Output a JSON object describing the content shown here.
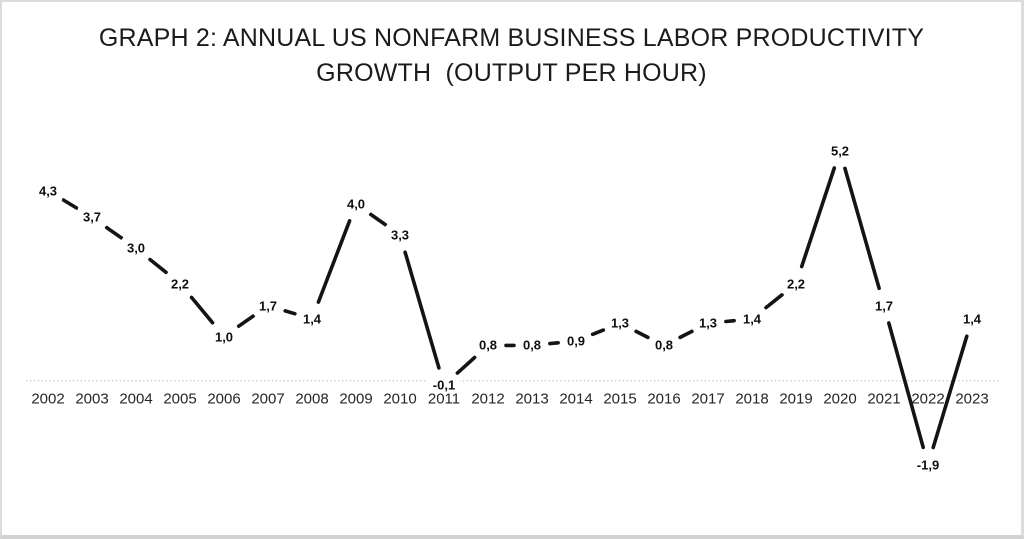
{
  "title": {
    "line1": "GRAPH 2: ANNUAL US NONFARM BUSINESS LABOR PRODUCTIVITY",
    "line2": "GROWTH  (OUTPUT PER HOUR)"
  },
  "chart_data": {
    "type": "line",
    "title": "GRAPH 2: ANNUAL US NONFARM BUSINESS LABOR PRODUCTIVITY GROWTH (OUTPUT PER HOUR)",
    "categories": [
      "2002",
      "2003",
      "2004",
      "2005",
      "2006",
      "2007",
      "2008",
      "2009",
      "2010",
      "2011",
      "2012",
      "2013",
      "2014",
      "2015",
      "2016",
      "2017",
      "2018",
      "2019",
      "2020",
      "2021",
      "2022",
      "2023"
    ],
    "values": [
      4.3,
      3.7,
      3.0,
      2.2,
      1.0,
      1.7,
      1.4,
      4.0,
      3.3,
      -0.1,
      0.8,
      0.8,
      0.9,
      1.3,
      0.8,
      1.3,
      1.4,
      2.2,
      5.2,
      1.7,
      -1.9,
      1.4
    ],
    "point_labels": [
      "4,3",
      "3,7",
      "3,0",
      "2,2",
      "1,0",
      "1,7",
      "1,4",
      "4,0",
      "3,3",
      "-0,1",
      "0,8",
      "0,8",
      "0,9",
      "1,3",
      "0,8",
      "1,3",
      "1,4",
      "2,2",
      "5,2",
      "1,7",
      "-1,9",
      "1,4"
    ],
    "decimal_separator": ",",
    "xlabel": "",
    "ylabel": "",
    "ylim": [
      -2.5,
      6
    ],
    "grid": false,
    "legend": false,
    "y_axis_visible": false,
    "zero_axis": {
      "style": "dotted",
      "color": "#c9c9c9"
    },
    "line_color": "#141414",
    "label_color": "#0f0f0f",
    "tick_label_color": "#262626",
    "background_color": "#ffffff",
    "frame_border_color": "#d9d9d9"
  }
}
